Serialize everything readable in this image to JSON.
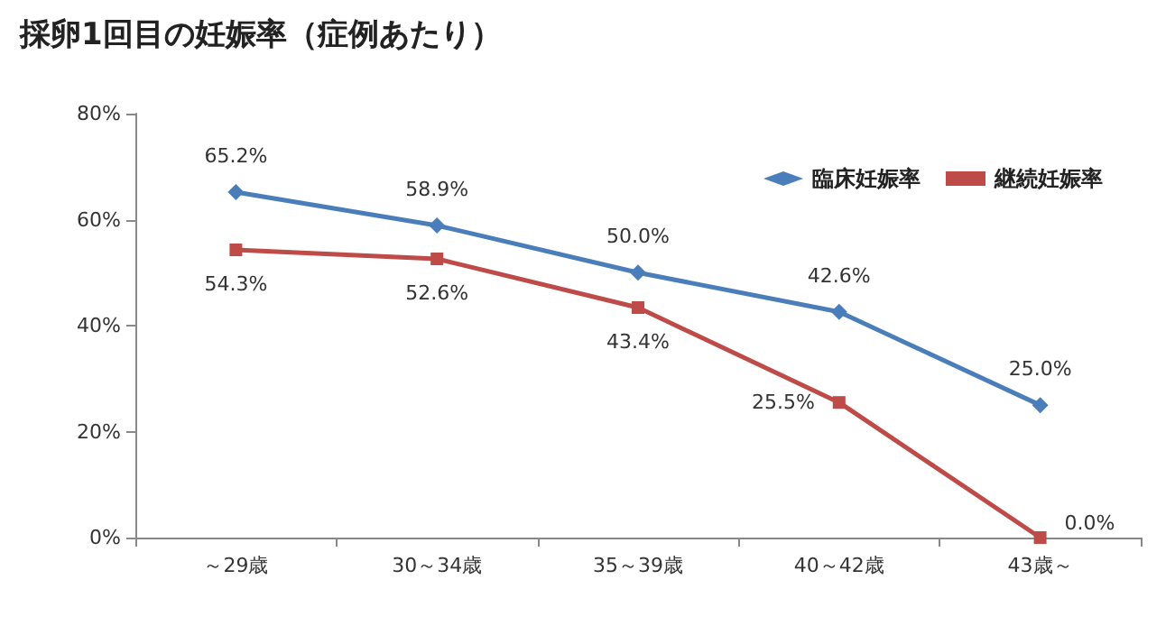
{
  "chart_data": {
    "type": "line",
    "title": "採卵1回目の妊娠率（症例あたり）",
    "categories": [
      "～29歳",
      "30～34歳",
      "35～39歳",
      "40～42歳",
      "43歳～"
    ],
    "series": [
      {
        "name": "臨床妊娠率",
        "color": "#4a7ebb",
        "marker": "diamond",
        "values": [
          65.2,
          58.9,
          50.0,
          42.6,
          25.0
        ],
        "value_labels": [
          "65.2%",
          "58.9%",
          "50.0%",
          "42.6%",
          "25.0%"
        ]
      },
      {
        "name": "継続妊娠率",
        "color": "#be4b48",
        "marker": "square",
        "values": [
          54.3,
          52.6,
          43.4,
          25.5,
          0.0
        ],
        "value_labels": [
          "54.3%",
          "52.6%",
          "43.4%",
          "25.5%",
          "0.0%"
        ]
      }
    ],
    "ylim": [
      0,
      80
    ],
    "yticks": [
      {
        "value": 0,
        "label": "0%"
      },
      {
        "value": 20,
        "label": "20%"
      },
      {
        "value": 40,
        "label": "40%"
      },
      {
        "value": 60,
        "label": "60%"
      },
      {
        "value": 80,
        "label": "80%"
      }
    ],
    "grid": false,
    "legend": "top right",
    "line_style": "solid"
  }
}
